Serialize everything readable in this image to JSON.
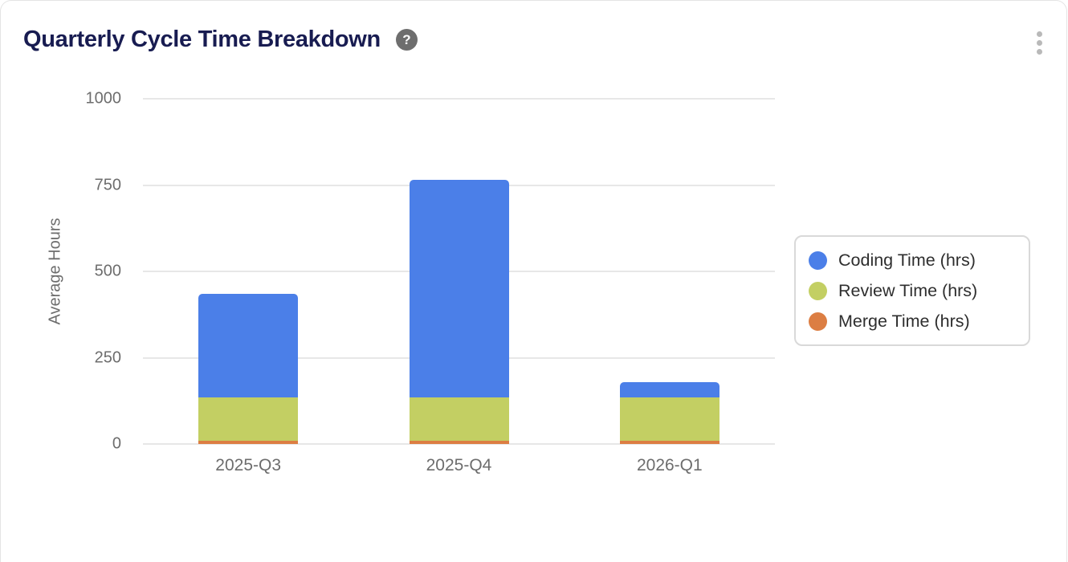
{
  "header": {
    "title": "Quarterly Cycle Time Breakdown",
    "help_glyph": "?",
    "icons": {
      "help": "question-mark-circle-icon",
      "menu": "vertical-kebab-dots-icon"
    }
  },
  "chart_data": {
    "type": "bar",
    "stacked": true,
    "title": "Quarterly Cycle Time Breakdown",
    "categories": [
      "2025-Q3",
      "2025-Q4",
      "2026-Q1"
    ],
    "series": [
      {
        "name": "Coding Time (hrs)",
        "color": "#4b7fe8",
        "values": [
          300,
          632,
          44
        ]
      },
      {
        "name": "Review Time (hrs)",
        "color": "#c3cf63",
        "values": [
          124,
          124,
          124
        ]
      },
      {
        "name": "Merge Time (hrs)",
        "color": "#dc7e43",
        "values": [
          10,
          10,
          10
        ]
      }
    ],
    "stacked_totals": [
      434,
      766,
      178
    ],
    "xlabel": "",
    "ylabel": "Average Hours",
    "ylim": [
      0,
      1000
    ],
    "yticks": [
      0,
      250,
      500,
      750,
      1000
    ],
    "grid": true,
    "legend_position": "right"
  },
  "colors": {
    "title_text": "#181c51",
    "gridline": "#e7e7e7",
    "tick_text": "#6d6d6d",
    "legend_border": "#d9d9d9",
    "legend_text": "#2e2e2e",
    "help_icon_bg": "#6e6e6e",
    "kebab_dots": "#b9b9b9",
    "card_border": "#e4e4e4"
  }
}
